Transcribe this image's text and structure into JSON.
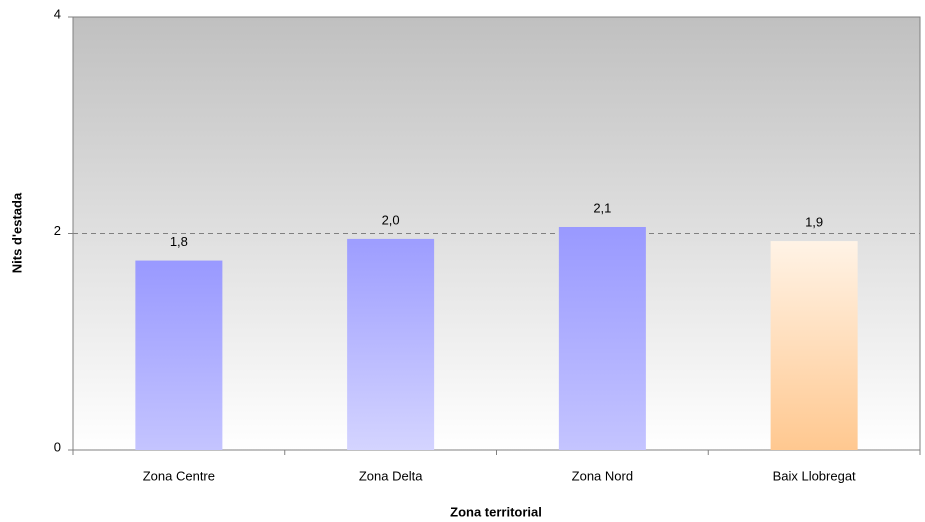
{
  "chart_data": {
    "type": "bar",
    "x_label": "Zona territorial",
    "y_label": "Nits d'estada",
    "categories": [
      "Zona Centre",
      "Zona Delta",
      "Zona Nord",
      "Baix Llobregat"
    ],
    "values": [
      1.75,
      1.95,
      2.06,
      1.93
    ],
    "value_labels": [
      "1,8",
      "2,0",
      "2,1",
      "1,9"
    ],
    "colors": [
      [
        "#9999ff",
        "#c4c4ff"
      ],
      [
        "#9d9dff",
        "#d4d4ff"
      ],
      [
        "#9999ff",
        "#c4c4ff"
      ],
      [
        "#fff3e6",
        "#ffc890"
      ]
    ],
    "ylim": [
      0,
      4
    ],
    "yticks": [
      0,
      2,
      4
    ],
    "grid": true
  }
}
